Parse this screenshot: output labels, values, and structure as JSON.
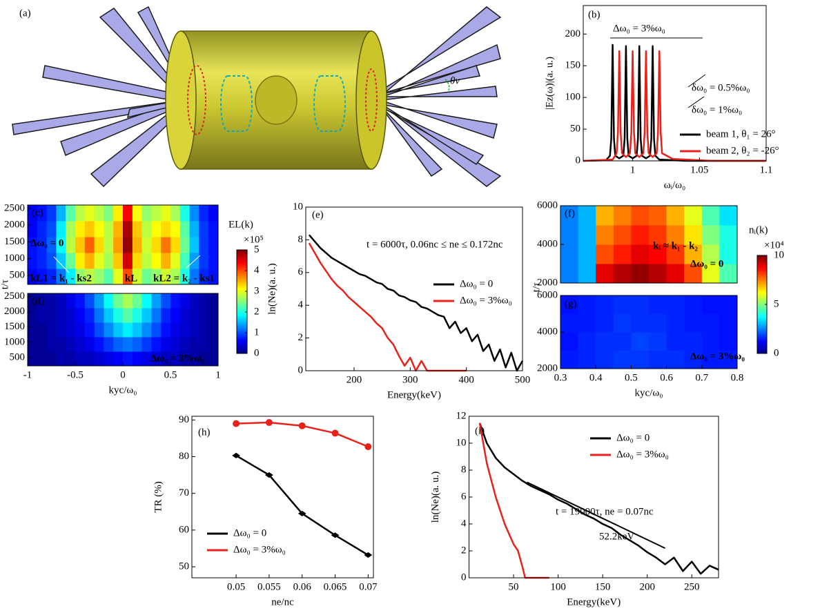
{
  "illustration": {
    "label": "(a)",
    "angle_label": "θv"
  },
  "chart_data": [
    {
      "type": "line",
      "label": "(b)",
      "ylabel": "|Ez(ω)|(a. u.)",
      "xlabel": "ωᵢ/ω₀",
      "xlim": [
        0.963,
        1.1
      ],
      "xticks": [
        1,
        1.05,
        1.1
      ],
      "ylim": [
        0,
        245
      ],
      "yticks": [
        0,
        50,
        100,
        150,
        200
      ],
      "annotations": [
        "Δω₀ = 3%ω₀",
        "δω₀ = 0.5%ω₀",
        "δω₀ = 1%ω₀"
      ],
      "series": [
        {
          "name": "beam 1, θ₁ = 26°",
          "color": "#000000",
          "x": [
            0.963,
            0.98,
            0.983,
            0.984,
            0.985,
            0.986,
            0.987,
            0.99,
            0.993,
            0.994,
            0.995,
            0.996,
            0.997,
            1.0,
            1.003,
            1.004,
            1.005,
            1.006,
            1.007,
            1.01,
            1.013,
            1.014,
            1.015,
            1.016,
            1.017,
            1.02,
            1.04,
            1.1
          ],
          "values": [
            0,
            1,
            8,
            35,
            183,
            35,
            8,
            4,
            8,
            35,
            181,
            35,
            8,
            4,
            8,
            35,
            181,
            35,
            8,
            4,
            8,
            35,
            181,
            35,
            8,
            2,
            0,
            0
          ]
        },
        {
          "name": "beam 2, θ₂ = -26°",
          "color": "#e8211a",
          "x": [
            0.963,
            0.985,
            0.988,
            0.989,
            0.99,
            0.991,
            0.992,
            0.995,
            0.998,
            0.999,
            1.0,
            1.001,
            1.002,
            1.005,
            1.008,
            1.009,
            1.01,
            1.011,
            1.012,
            1.015,
            1.018,
            1.019,
            1.02,
            1.021,
            1.022,
            1.03,
            1.06,
            1.1
          ],
          "values": [
            0,
            2,
            12,
            45,
            173,
            45,
            12,
            6,
            12,
            45,
            173,
            45,
            12,
            6,
            12,
            45,
            173,
            45,
            12,
            6,
            12,
            45,
            173,
            45,
            12,
            3,
            0,
            0
          ]
        }
      ]
    },
    {
      "type": "heatmap",
      "label": "(c)",
      "ylabel": "t/τ",
      "xlim": [
        -1,
        1
      ],
      "ylim": [
        230,
        2600
      ],
      "yticks": [
        500,
        1000,
        1500,
        2000,
        2500
      ],
      "clim": [
        0,
        5
      ],
      "annotations": [
        "Δω₀ = 0",
        "kL1 = k₁ - ks2",
        "kL",
        "kL2 = k₂ - ks1"
      ],
      "colorbar": {
        "label": "EL(k)",
        "scale_label": "×10⁵",
        "ticks": [
          0,
          1,
          2,
          3,
          4,
          5
        ]
      },
      "x": [
        -0.95,
        -0.85,
        -0.75,
        -0.65,
        -0.55,
        -0.45,
        -0.35,
        -0.25,
        -0.15,
        -0.05,
        0.05,
        0.15,
        0.25,
        0.35,
        0.45,
        0.55,
        0.65,
        0.75,
        0.85,
        0.95
      ],
      "y": [
        467,
        941,
        1415,
        1889,
        2363
      ],
      "z": [
        [
          0.6,
          0.7,
          0.8,
          1.2,
          1.8,
          2.6,
          2.8,
          2.6,
          2.3,
          3.0,
          4.0,
          2.9,
          2.4,
          2.6,
          2.9,
          2.7,
          2.0,
          1.2,
          0.8,
          0.7
        ],
        [
          0.7,
          0.8,
          1.0,
          1.6,
          2.4,
          3.2,
          3.5,
          3.0,
          2.7,
          3.4,
          4.6,
          3.3,
          2.8,
          3.1,
          3.5,
          3.0,
          2.2,
          1.4,
          0.9,
          0.7
        ],
        [
          0.7,
          0.8,
          1.1,
          1.9,
          2.8,
          3.4,
          3.9,
          3.3,
          2.8,
          3.6,
          4.9,
          3.5,
          2.9,
          3.3,
          3.8,
          3.3,
          2.4,
          1.6,
          0.9,
          0.7
        ],
        [
          0.6,
          0.8,
          1.0,
          1.8,
          2.7,
          3.2,
          3.4,
          3.1,
          2.8,
          3.5,
          4.8,
          3.4,
          2.8,
          3.1,
          3.3,
          3.1,
          2.3,
          1.5,
          0.9,
          0.7
        ],
        [
          0.6,
          0.7,
          0.9,
          1.5,
          2.3,
          2.8,
          3.0,
          2.8,
          2.5,
          3.2,
          4.4,
          3.1,
          2.6,
          2.8,
          3.0,
          2.7,
          2.0,
          1.3,
          0.8,
          0.6
        ]
      ]
    },
    {
      "type": "heatmap",
      "label": "(d)",
      "xlabel": "kyc/ω₀",
      "xlim": [
        -1,
        1
      ],
      "xticks": [
        -1,
        -0.5,
        0,
        0.5,
        1
      ],
      "ylim": [
        230,
        2600
      ],
      "yticks": [
        500,
        1000,
        1500,
        2000,
        2500
      ],
      "clim": [
        0,
        5
      ],
      "annotations": [
        "Δω₀ = 3%ω₀"
      ],
      "x": [
        -0.95,
        -0.85,
        -0.75,
        -0.65,
        -0.55,
        -0.45,
        -0.35,
        -0.25,
        -0.15,
        -0.05,
        0.05,
        0.15,
        0.25,
        0.35,
        0.45,
        0.55,
        0.65,
        0.75,
        0.85,
        0.95
      ],
      "y": [
        467,
        941,
        1415,
        1889,
        2363
      ],
      "z": [
        [
          0.1,
          0.1,
          0.1,
          0.2,
          0.2,
          0.3,
          0.3,
          0.4,
          0.5,
          0.6,
          0.7,
          0.6,
          0.5,
          0.4,
          0.3,
          0.3,
          0.2,
          0.2,
          0.1,
          0.1
        ],
        [
          0.1,
          0.1,
          0.2,
          0.2,
          0.3,
          0.4,
          0.5,
          0.7,
          0.9,
          1.1,
          1.2,
          1.1,
          0.9,
          0.7,
          0.5,
          0.4,
          0.3,
          0.2,
          0.2,
          0.1
        ],
        [
          0.1,
          0.1,
          0.2,
          0.3,
          0.4,
          0.5,
          0.7,
          1.0,
          1.3,
          1.6,
          1.8,
          1.6,
          1.3,
          1.0,
          0.7,
          0.5,
          0.4,
          0.3,
          0.2,
          0.1
        ],
        [
          0.1,
          0.2,
          0.2,
          0.3,
          0.4,
          0.6,
          0.8,
          1.2,
          1.6,
          2.0,
          2.3,
          2.0,
          1.6,
          1.2,
          0.8,
          0.6,
          0.4,
          0.3,
          0.2,
          0.1
        ],
        [
          0.1,
          0.2,
          0.2,
          0.3,
          0.5,
          0.7,
          1.0,
          1.4,
          1.9,
          2.4,
          2.7,
          2.4,
          1.9,
          1.4,
          1.0,
          0.7,
          0.5,
          0.3,
          0.2,
          0.1
        ]
      ]
    },
    {
      "type": "line",
      "label": "(e)",
      "ylabel": "ln(Ne)(a. u.)",
      "xlabel": "Energy(keV)",
      "xlim": [
        114,
        500
      ],
      "xticks": [
        200,
        300,
        400,
        500
      ],
      "ylim": [
        0,
        10
      ],
      "yticks": [
        0,
        2,
        4,
        6,
        8,
        10
      ],
      "annotations": [
        "t = 6000τ, 0.06nc ≤ ne ≤ 0.172nc"
      ],
      "series": [
        {
          "name": "Δω₀ = 0",
          "color": "#000000",
          "x": [
            120,
            130,
            140,
            150,
            160,
            170,
            180,
            190,
            200,
            210,
            220,
            230,
            240,
            250,
            260,
            270,
            280,
            290,
            300,
            310,
            320,
            330,
            340,
            350,
            360,
            370,
            380,
            390,
            400,
            410,
            420,
            430,
            440,
            450,
            460,
            470,
            480,
            490,
            500
          ],
          "values": [
            8.3,
            7.9,
            7.5,
            7.2,
            6.9,
            6.7,
            6.5,
            6.3,
            6.1,
            5.9,
            5.8,
            5.6,
            5.4,
            5.3,
            5.0,
            4.9,
            4.6,
            4.5,
            4.3,
            4.2,
            3.9,
            3.8,
            3.6,
            3.4,
            3.3,
            2.6,
            3.0,
            2.3,
            2.6,
            1.8,
            2.2,
            1.2,
            1.6,
            0.6,
            1.3,
            0.2,
            1.1,
            0,
            0.6
          ]
        },
        {
          "name": "Δω₀ = 3%ω₀",
          "color": "#e8211a",
          "x": [
            120,
            130,
            140,
            150,
            160,
            170,
            180,
            190,
            200,
            210,
            220,
            230,
            240,
            250,
            260,
            270,
            280,
            290,
            300,
            310,
            320,
            330,
            340,
            350,
            360,
            370,
            380,
            390,
            400
          ],
          "values": [
            7.8,
            7.2,
            6.6,
            6.1,
            5.6,
            5.2,
            4.9,
            4.5,
            4.2,
            3.9,
            3.6,
            3.3,
            2.9,
            2.6,
            2.0,
            1.6,
            0.9,
            0.3,
            0.8,
            0,
            0.6,
            0,
            0,
            0,
            0,
            0,
            0,
            0,
            0
          ]
        }
      ]
    },
    {
      "type": "heatmap",
      "label": "(f)",
      "ylabel": "t/τ",
      "xlim": [
        0.3,
        0.8
      ],
      "ylim": [
        2000,
        6000
      ],
      "yticks": [
        2000,
        4000,
        6000
      ],
      "clim": [
        0,
        10
      ],
      "annotations": [
        "kᵢ ≈ k₁ - k₂",
        "Δω₀ = 0"
      ],
      "colorbar": {
        "label": "nᵢ(k)",
        "scale_label": "×10⁴",
        "ticks": [
          0,
          5,
          10
        ]
      },
      "x": [
        0.325,
        0.375,
        0.425,
        0.475,
        0.525,
        0.575,
        0.625,
        0.675,
        0.725,
        0.775
      ],
      "y": [
        2500,
        3500,
        4500,
        5500
      ],
      "z": [
        [
          2.5,
          3,
          9,
          9.5,
          9.8,
          9.5,
          9,
          8,
          6,
          4.5
        ],
        [
          2.5,
          3,
          8,
          8.5,
          9,
          8.8,
          8.2,
          7,
          5.5,
          4
        ],
        [
          2.5,
          3,
          7.5,
          8,
          8.5,
          8.2,
          7.5,
          6.5,
          5,
          4
        ],
        [
          2.5,
          3,
          7,
          7.5,
          8,
          7.8,
          7,
          6,
          4.5,
          3.5
        ]
      ]
    },
    {
      "type": "heatmap",
      "label": "(g)",
      "xlabel": "kyc/ω₀",
      "xlim": [
        0.3,
        0.8
      ],
      "xticks": [
        0.3,
        0.4,
        0.5,
        0.6,
        0.7,
        0.8
      ],
      "ylim": [
        2000,
        6000
      ],
      "yticks": [
        2000,
        4000,
        6000
      ],
      "clim": [
        0,
        10
      ],
      "annotations": [
        "Δω₀ = 3%ω₀"
      ],
      "x": [
        0.325,
        0.375,
        0.425,
        0.475,
        0.525,
        0.575,
        0.625,
        0.675,
        0.725,
        0.775
      ],
      "y": [
        2500,
        3500,
        4500,
        5500
      ],
      "z": [
        [
          1.5,
          1.6,
          1.7,
          1.8,
          1.8,
          1.7,
          1.7,
          1.6,
          1.5,
          1.5
        ],
        [
          1.4,
          1.6,
          1.7,
          1.7,
          1.9,
          1.8,
          1.6,
          1.6,
          1.5,
          1.4
        ],
        [
          1.5,
          1.5,
          1.6,
          1.8,
          1.7,
          1.7,
          1.6,
          1.5,
          1.5,
          1.4
        ],
        [
          1.4,
          1.5,
          1.6,
          1.7,
          1.7,
          1.6,
          1.6,
          1.5,
          1.4,
          1.4
        ]
      ]
    },
    {
      "type": "line",
      "label": "(h)",
      "ylabel": "TR (%)",
      "xlabel": "ne/nc",
      "xlim": [
        0.0433,
        0.0708
      ],
      "xticks": [
        0.05,
        0.055,
        0.06,
        0.065,
        0.07
      ],
      "ylim": [
        47,
        91
      ],
      "yticks": [
        50,
        60,
        70,
        80,
        90
      ],
      "x": [
        0.05,
        0.055,
        0.06,
        0.065,
        0.07
      ],
      "series": [
        {
          "name": "Δω₀ = 0",
          "color": "#000000",
          "marker": "diamond",
          "values": [
            80.3,
            75,
            64.5,
            58.6,
            53.2
          ]
        },
        {
          "name": "Δω₀ = 3%ω₀",
          "color": "#e8211a",
          "marker": "circle",
          "values": [
            89,
            89.3,
            88.4,
            86.4,
            82.7
          ]
        }
      ]
    },
    {
      "type": "line",
      "label": "(i)",
      "ylabel": "ln(Ne)(a. u.)",
      "xlabel": "Energy(keV)",
      "xlim": [
        0,
        280
      ],
      "xticks": [
        50,
        100,
        150,
        200,
        250
      ],
      "ylim": [
        0,
        12
      ],
      "yticks": [
        0,
        2,
        4,
        6,
        8,
        10,
        12
      ],
      "annotations": [
        "t = 19000τ, ne = 0.07nc",
        "52.2keV"
      ],
      "fit": {
        "x": [
          65,
          220
        ],
        "values": [
          7.1,
          2.2
        ]
      },
      "series": [
        {
          "name": "Δω₀ = 0",
          "color": "#000000",
          "x": [
            12,
            20,
            30,
            40,
            50,
            60,
            70,
            80,
            90,
            100,
            110,
            120,
            130,
            140,
            150,
            160,
            170,
            180,
            190,
            200,
            210,
            220,
            230,
            240,
            250,
            260,
            270,
            280
          ],
          "values": [
            11.5,
            10,
            8.9,
            8.2,
            7.7,
            7.2,
            6.8,
            6.5,
            6.2,
            5.8,
            5.5,
            5.1,
            4.7,
            4.4,
            4.0,
            3.7,
            3.2,
            2.8,
            2.4,
            1.9,
            1.5,
            1.0,
            1.5,
            0.5,
            1.2,
            0.3,
            0.9,
            0.6
          ]
        },
        {
          "name": "Δω₀ = 3%ω₀",
          "color": "#e8211a",
          "x": [
            12,
            20,
            30,
            40,
            50,
            55,
            60,
            63,
            90
          ],
          "values": [
            11.5,
            8.5,
            6,
            4,
            2.5,
            2,
            0.8,
            0,
            0
          ]
        }
      ]
    }
  ]
}
